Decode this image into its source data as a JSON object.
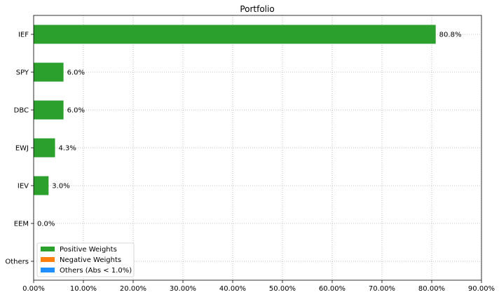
{
  "chart_data": {
    "type": "bar",
    "orientation": "horizontal",
    "title": "Portfolio",
    "xlabel": "",
    "ylabel": "",
    "xlim": [
      0,
      90
    ],
    "x_ticks": [
      0,
      10,
      20,
      30,
      40,
      50,
      60,
      70,
      80,
      90
    ],
    "x_tick_labels": [
      "0.00%",
      "10.00%",
      "20.00%",
      "30.00%",
      "40.00%",
      "50.00%",
      "60.00%",
      "70.00%",
      "80.00%",
      "90.00%"
    ],
    "grid": true,
    "categories": [
      "IEF",
      "SPY",
      "DBC",
      "EWJ",
      "IEV",
      "EEM",
      "Others"
    ],
    "series": [
      {
        "name": "Positive Weights",
        "color": "#2ca02c",
        "values": [
          80.8,
          6.0,
          6.0,
          4.3,
          3.0,
          0.0,
          0
        ]
      },
      {
        "name": "Negative Weights",
        "color": "#ff7f0e",
        "values": [
          0,
          0,
          0,
          0,
          0,
          0,
          0
        ]
      },
      {
        "name": "Others (Abs < 1.0%)",
        "color": "#1f8fff",
        "values": [
          0,
          0,
          0,
          0,
          0,
          0,
          0
        ]
      }
    ],
    "data_labels": [
      "80.8%",
      "6.0%",
      "6.0%",
      "4.3%",
      "3.0%",
      "0.0%",
      null
    ],
    "legend": {
      "position": "lower-left",
      "entries": [
        {
          "label": "Positive Weights",
          "color": "#2ca02c"
        },
        {
          "label": "Negative Weights",
          "color": "#ff7f0e"
        },
        {
          "label": "Others (Abs < 1.0%)",
          "color": "#1f8fff"
        }
      ]
    }
  }
}
